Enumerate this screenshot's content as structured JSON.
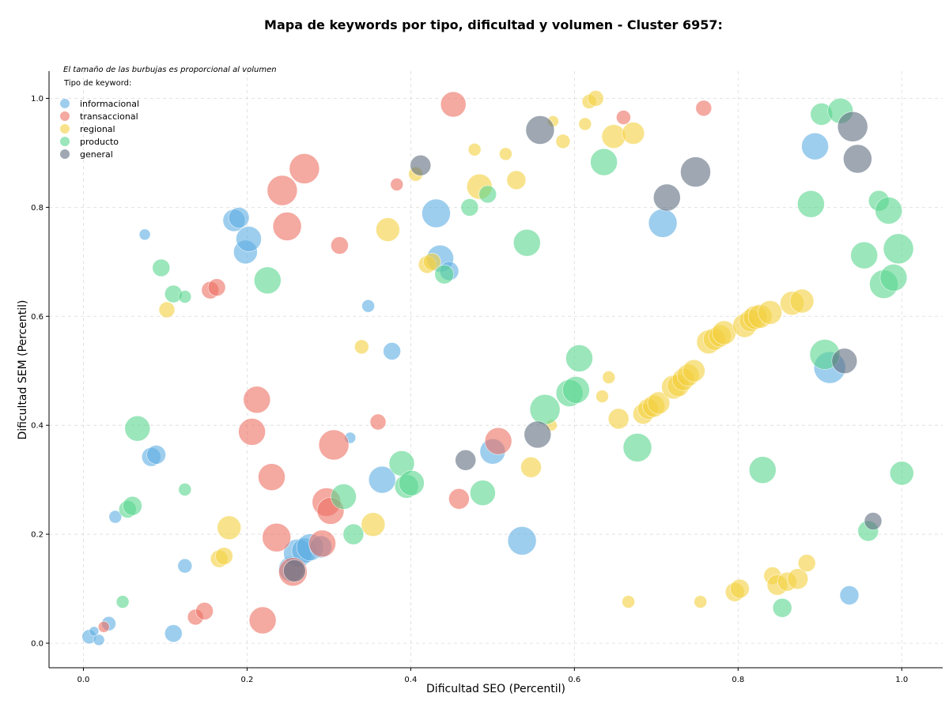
{
  "chart_data": {
    "type": "scatter",
    "title": "Mapa de keywords por tipo, dificultad y volumen - Cluster 6957:",
    "xlabel": "Dificultad SEO (Percentil)",
    "ylabel": "Dificultad SEM (Percentil)",
    "note": "El tamaño de las burbujas es proporcional al volumen",
    "legend_title": "Tipo de keyword:",
    "legend_placement": "top-left",
    "grid": true,
    "xlim": [
      -0.042,
      1.05
    ],
    "ylim": [
      -0.045,
      1.05
    ],
    "xticks": [
      0.0,
      0.2,
      0.4,
      0.6,
      0.8,
      1.0
    ],
    "yticks": [
      0.0,
      0.2,
      0.4,
      0.6,
      0.8,
      1.0
    ],
    "xtick_labels": [
      "0.0",
      "0.2",
      "0.4",
      "0.6",
      "0.8",
      "1.0"
    ],
    "ytick_labels": [
      "0.0",
      "0.2",
      "0.4",
      "0.6",
      "0.8",
      "1.0"
    ],
    "series": [
      {
        "name": "informacional",
        "color": "#5DADE2",
        "points": [
          [
            0.007,
            0.012,
            9
          ],
          [
            0.013,
            0.022,
            6
          ],
          [
            0.019,
            0.006,
            7
          ],
          [
            0.031,
            0.036,
            9
          ],
          [
            0.039,
            0.232,
            8
          ],
          [
            0.075,
            0.75,
            7
          ],
          [
            0.083,
            0.342,
            12
          ],
          [
            0.089,
            0.346,
            12
          ],
          [
            0.11,
            0.018,
            11
          ],
          [
            0.124,
            0.142,
            9
          ],
          [
            0.184,
            0.776,
            14
          ],
          [
            0.19,
            0.781,
            13
          ],
          [
            0.198,
            0.718,
            15
          ],
          [
            0.202,
            0.742,
            16
          ],
          [
            0.254,
            0.136,
            16
          ],
          [
            0.262,
            0.165,
            18
          ],
          [
            0.27,
            0.17,
            16
          ],
          [
            0.277,
            0.176,
            17
          ],
          [
            0.29,
            0.177,
            14
          ],
          [
            0.326,
            0.377,
            7
          ],
          [
            0.348,
            0.619,
            8
          ],
          [
            0.365,
            0.3,
            17
          ],
          [
            0.377,
            0.536,
            11
          ],
          [
            0.431,
            0.789,
            18
          ],
          [
            0.436,
            0.706,
            17
          ],
          [
            0.447,
            0.683,
            12
          ],
          [
            0.5,
            0.352,
            16
          ],
          [
            0.536,
            0.188,
            18
          ],
          [
            0.708,
            0.771,
            18
          ],
          [
            0.894,
            0.912,
            17
          ],
          [
            0.912,
            0.506,
            20
          ],
          [
            0.936,
            0.088,
            12
          ]
        ]
      },
      {
        "name": "transaccional",
        "color": "#EC7063",
        "points": [
          [
            0.025,
            0.03,
            7
          ],
          [
            0.137,
            0.048,
            10
          ],
          [
            0.148,
            0.059,
            11
          ],
          [
            0.155,
            0.648,
            11
          ],
          [
            0.163,
            0.653,
            11
          ],
          [
            0.206,
            0.388,
            17
          ],
          [
            0.212,
            0.447,
            17
          ],
          [
            0.219,
            0.042,
            17
          ],
          [
            0.23,
            0.305,
            17
          ],
          [
            0.236,
            0.194,
            18
          ],
          [
            0.243,
            0.831,
            19
          ],
          [
            0.249,
            0.765,
            18
          ],
          [
            0.256,
            0.131,
            18
          ],
          [
            0.27,
            0.871,
            19
          ],
          [
            0.292,
            0.183,
            17
          ],
          [
            0.297,
            0.259,
            18
          ],
          [
            0.302,
            0.243,
            17
          ],
          [
            0.306,
            0.364,
            19
          ],
          [
            0.313,
            0.73,
            11
          ],
          [
            0.36,
            0.406,
            10
          ],
          [
            0.383,
            0.842,
            8
          ],
          [
            0.452,
            0.989,
            16
          ],
          [
            0.459,
            0.265,
            13
          ],
          [
            0.507,
            0.371,
            17
          ],
          [
            0.66,
            0.965,
            9
          ],
          [
            0.758,
            0.982,
            10
          ]
        ]
      },
      {
        "name": "regional",
        "color": "#F4D03F",
        "points": [
          [
            0.102,
            0.612,
            10
          ],
          [
            0.166,
            0.155,
            11
          ],
          [
            0.172,
            0.16,
            11
          ],
          [
            0.178,
            0.212,
            15
          ],
          [
            0.34,
            0.544,
            9
          ],
          [
            0.354,
            0.218,
            15
          ],
          [
            0.372,
            0.759,
            15
          ],
          [
            0.406,
            0.861,
            9
          ],
          [
            0.42,
            0.695,
            11
          ],
          [
            0.426,
            0.7,
            11
          ],
          [
            0.478,
            0.906,
            8
          ],
          [
            0.484,
            0.838,
            16
          ],
          [
            0.516,
            0.898,
            8
          ],
          [
            0.529,
            0.85,
            12
          ],
          [
            0.547,
            0.323,
            13
          ],
          [
            0.572,
            0.4,
            7
          ],
          [
            0.574,
            0.958,
            7
          ],
          [
            0.586,
            0.921,
            9
          ],
          [
            0.613,
            0.953,
            8
          ],
          [
            0.618,
            0.994,
            9
          ],
          [
            0.626,
            1.0,
            10
          ],
          [
            0.634,
            0.453,
            8
          ],
          [
            0.642,
            0.488,
            8
          ],
          [
            0.648,
            0.93,
            15
          ],
          [
            0.654,
            0.412,
            13
          ],
          [
            0.666,
            0.076,
            8
          ],
          [
            0.672,
            0.936,
            14
          ],
          [
            0.684,
            0.421,
            13
          ],
          [
            0.69,
            0.43,
            13
          ],
          [
            0.697,
            0.435,
            14
          ],
          [
            0.703,
            0.441,
            14
          ],
          [
            0.721,
            0.47,
            15
          ],
          [
            0.727,
            0.473,
            14
          ],
          [
            0.733,
            0.484,
            14
          ],
          [
            0.739,
            0.492,
            14
          ],
          [
            0.746,
            0.5,
            14
          ],
          [
            0.754,
            0.076,
            8
          ],
          [
            0.764,
            0.553,
            15
          ],
          [
            0.771,
            0.558,
            14
          ],
          [
            0.778,
            0.564,
            14
          ],
          [
            0.783,
            0.57,
            15
          ],
          [
            0.796,
            0.094,
            12
          ],
          [
            0.802,
            0.1,
            12
          ],
          [
            0.808,
            0.583,
            15
          ],
          [
            0.815,
            0.592,
            14
          ],
          [
            0.821,
            0.598,
            15
          ],
          [
            0.827,
            0.6,
            15
          ],
          [
            0.839,
            0.607,
            15
          ],
          [
            0.842,
            0.124,
            11
          ],
          [
            0.848,
            0.107,
            13
          ],
          [
            0.86,
            0.113,
            12
          ],
          [
            0.866,
            0.624,
            15
          ],
          [
            0.873,
            0.118,
            13
          ],
          [
            0.878,
            0.628,
            15
          ],
          [
            0.884,
            0.147,
            11
          ]
        ]
      },
      {
        "name": "producto",
        "color": "#58D68D",
        "points": [
          [
            0.048,
            0.076,
            8
          ],
          [
            0.054,
            0.246,
            11
          ],
          [
            0.06,
            0.252,
            12
          ],
          [
            0.066,
            0.394,
            16
          ],
          [
            0.095,
            0.689,
            11
          ],
          [
            0.11,
            0.641,
            11
          ],
          [
            0.124,
            0.636,
            8
          ],
          [
            0.124,
            0.282,
            8
          ],
          [
            0.225,
            0.666,
            17
          ],
          [
            0.318,
            0.269,
            16
          ],
          [
            0.33,
            0.2,
            13
          ],
          [
            0.389,
            0.33,
            16
          ],
          [
            0.395,
            0.288,
            15
          ],
          [
            0.401,
            0.294,
            16
          ],
          [
            0.441,
            0.677,
            12
          ],
          [
            0.472,
            0.8,
            11
          ],
          [
            0.488,
            0.276,
            16
          ],
          [
            0.494,
            0.824,
            11
          ],
          [
            0.542,
            0.735,
            17
          ],
          [
            0.564,
            0.429,
            19
          ],
          [
            0.594,
            0.459,
            17
          ],
          [
            0.602,
            0.465,
            17
          ],
          [
            0.606,
            0.523,
            17
          ],
          [
            0.636,
            0.883,
            17
          ],
          [
            0.677,
            0.359,
            18
          ],
          [
            0.83,
            0.318,
            17
          ],
          [
            0.854,
            0.065,
            12
          ],
          [
            0.889,
            0.806,
            17
          ],
          [
            0.902,
            0.971,
            14
          ],
          [
            0.906,
            0.53,
            19
          ],
          [
            0.925,
            0.977,
            16
          ],
          [
            0.954,
            0.712,
            17
          ],
          [
            0.959,
            0.206,
            13
          ],
          [
            0.972,
            0.812,
            13
          ],
          [
            0.978,
            0.659,
            18
          ],
          [
            0.984,
            0.794,
            17
          ],
          [
            0.99,
            0.671,
            17
          ],
          [
            0.996,
            0.724,
            19
          ],
          [
            1.0,
            0.312,
            15
          ]
        ]
      },
      {
        "name": "general",
        "color": "#5D6D7E",
        "points": [
          [
            0.258,
            0.133,
            14
          ],
          [
            0.412,
            0.877,
            13
          ],
          [
            0.467,
            0.336,
            13
          ],
          [
            0.555,
            0.383,
            17
          ],
          [
            0.558,
            0.942,
            18
          ],
          [
            0.713,
            0.818,
            17
          ],
          [
            0.748,
            0.865,
            19
          ],
          [
            0.93,
            0.518,
            16
          ],
          [
            0.94,
            0.948,
            19
          ],
          [
            0.946,
            0.889,
            18
          ],
          [
            0.965,
            0.224,
            11
          ]
        ]
      }
    ]
  }
}
